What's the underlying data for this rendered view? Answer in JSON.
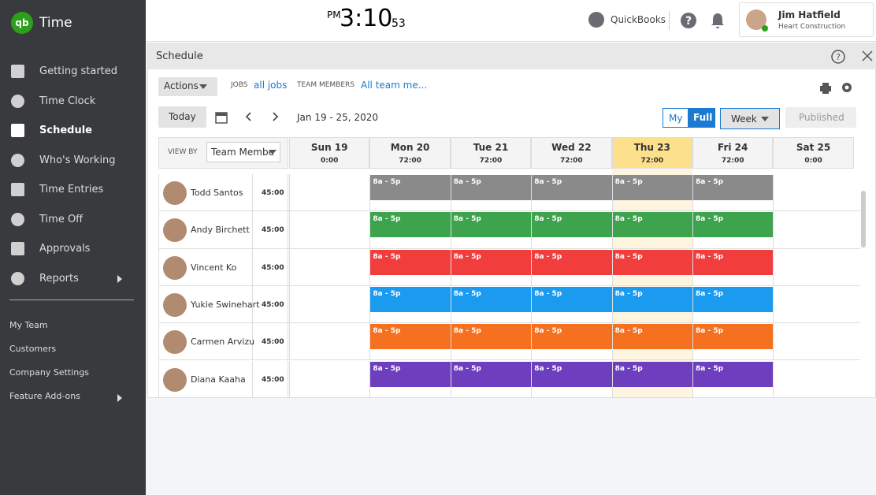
{
  "sidebar": {
    "brand": "Time",
    "nav": [
      "Getting started",
      "Time Clock",
      "Schedule",
      "Who's Working",
      "Time Entries",
      "Time Off",
      "Approvals",
      "Reports"
    ],
    "active": "Schedule",
    "secondary": [
      "My Team",
      "Customers",
      "Company Settings",
      "Feature Add-ons"
    ]
  },
  "header": {
    "clock": {
      "ampm": "PM",
      "time": "3:10",
      "seconds": "53"
    },
    "quickbooks": "QuickBooks",
    "user": {
      "name": "Jim Hatfield",
      "company": "Heart Construction"
    }
  },
  "schedule": {
    "title": "Schedule",
    "actions": "Actions",
    "jobs_label": "JOBS",
    "jobs_value": "all jobs",
    "members_label": "TEAM MEMBERS",
    "members_value": "All team me...",
    "today": "Today",
    "date_range": "Jan 19 - 25, 2020",
    "my": "My",
    "full": "Full",
    "week": "Week",
    "published": "Published",
    "view_by_label": "VIEW BY",
    "view_by_value": "Team Membe",
    "days": [
      {
        "name": "Sun 19",
        "hours": "0:00"
      },
      {
        "name": "Mon 20",
        "hours": "72:00"
      },
      {
        "name": "Tue 21",
        "hours": "72:00"
      },
      {
        "name": "Wed 22",
        "hours": "72:00"
      },
      {
        "name": "Thu 23",
        "hours": "72:00"
      },
      {
        "name": "Fri 24",
        "hours": "72:00"
      },
      {
        "name": "Sat 25",
        "hours": "0:00"
      }
    ],
    "today_index": 4,
    "employees": [
      {
        "name": "Todd Santos",
        "hours": "45:00",
        "color": "#8a8a8a",
        "shifts": [
          null,
          "8a - 5p",
          "8a - 5p",
          "8a - 5p",
          "8a - 5p",
          "8a - 5p",
          null
        ]
      },
      {
        "name": "Andy Birchett",
        "hours": "45:00",
        "color": "#3ea34d",
        "shifts": [
          null,
          "8a - 5p",
          "8a - 5p",
          "8a - 5p",
          "8a - 5p",
          "8a - 5p",
          null
        ]
      },
      {
        "name": "Vincent Ko",
        "hours": "45:00",
        "color": "#f23d3d",
        "shifts": [
          null,
          "8a - 5p",
          "8a - 5p",
          "8a - 5p",
          "8a - 5p",
          "8a - 5p",
          null
        ]
      },
      {
        "name": "Yukie Swinehart",
        "hours": "45:00",
        "color": "#1a9bf0",
        "shifts": [
          null,
          "8a - 5p",
          "8a - 5p",
          "8a - 5p",
          "8a - 5p",
          "8a - 5p",
          null
        ]
      },
      {
        "name": "Carmen Arvizu",
        "hours": "45:00",
        "color": "#f5701f",
        "shifts": [
          null,
          "8a - 5p",
          "8a - 5p",
          "8a - 5p",
          "8a - 5p",
          "8a - 5p",
          null
        ]
      },
      {
        "name": "Diana Kaaha",
        "hours": "45:00",
        "color": "#6d3fbf",
        "shifts": [
          null,
          "8a - 5p",
          "8a - 5p",
          "8a - 5p",
          "8a - 5p",
          "8a - 5p",
          null
        ]
      }
    ]
  }
}
